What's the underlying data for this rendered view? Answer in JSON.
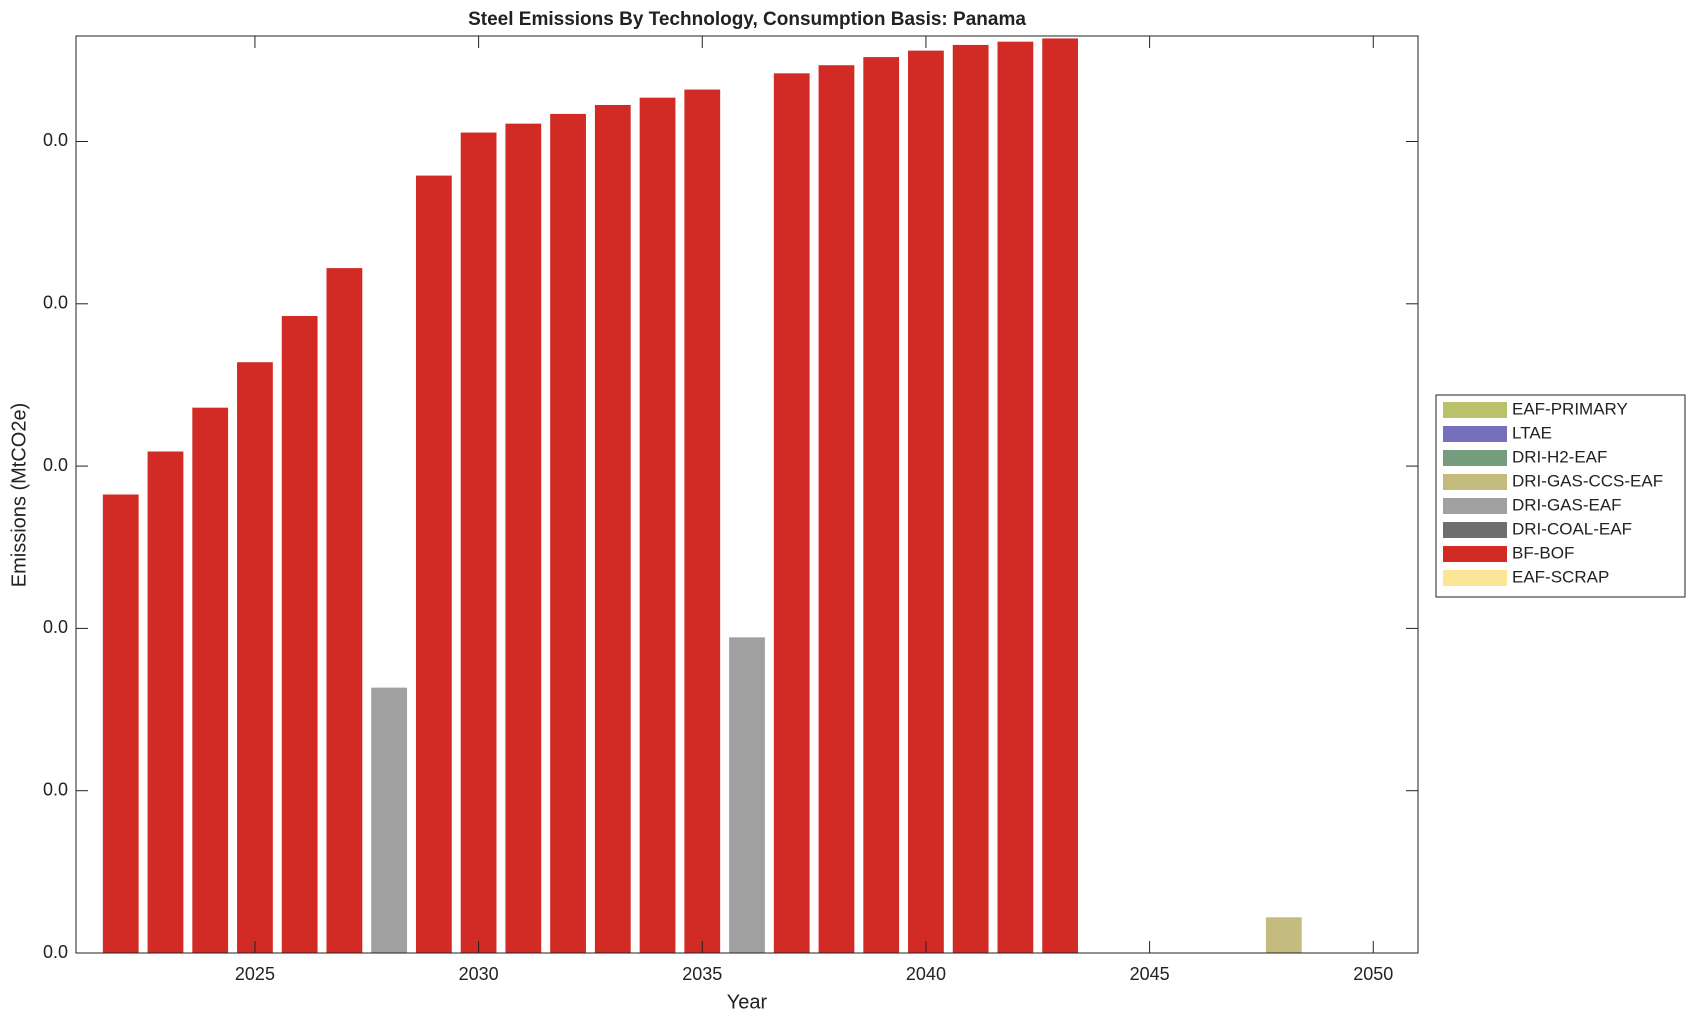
{
  "chart_data": {
    "type": "bar",
    "stacked": true,
    "title": "Steel Emissions By Technology, Consumption Basis: Panama",
    "xlabel": "Year",
    "ylabel": "Emissions (MtCO2e)",
    "x": [
      2022,
      2023,
      2024,
      2025,
      2026,
      2027,
      2028,
      2029,
      2030,
      2031,
      2032,
      2033,
      2034,
      2035,
      2036,
      2037,
      2038,
      2039,
      2040,
      2041,
      2042,
      2043,
      2048
    ],
    "series": [
      {
        "name": "EAF-PRIMARY",
        "color": "#b9c16a",
        "values": [
          null,
          null,
          null,
          null,
          null,
          null,
          null,
          null,
          null,
          null,
          null,
          null,
          null,
          null,
          null,
          null,
          null,
          null,
          null,
          null,
          null,
          null,
          null
        ]
      },
      {
        "name": "LTAE",
        "color": "#7570bb",
        "values": [
          null,
          null,
          null,
          null,
          null,
          null,
          null,
          null,
          null,
          null,
          null,
          null,
          null,
          null,
          null,
          null,
          null,
          null,
          null,
          null,
          null,
          null,
          null
        ]
      },
      {
        "name": "DRI-H2-EAF",
        "color": "#759c7c",
        "values": [
          null,
          null,
          null,
          null,
          null,
          null,
          null,
          null,
          null,
          null,
          null,
          null,
          null,
          null,
          null,
          null,
          null,
          null,
          null,
          null,
          null,
          null,
          null
        ]
      },
      {
        "name": "DRI-GAS-CCS-EAF",
        "color": "#c4bb7e",
        "values": [
          null,
          null,
          null,
          null,
          null,
          null,
          null,
          null,
          null,
          null,
          null,
          null,
          null,
          null,
          null,
          null,
          null,
          null,
          null,
          null,
          null,
          null,
          0.00044
        ]
      },
      {
        "name": "DRI-GAS-EAF",
        "color": "#a0a0a0",
        "values": [
          null,
          null,
          null,
          null,
          null,
          null,
          0.00327,
          null,
          null,
          null,
          null,
          null,
          null,
          null,
          0.00389,
          null,
          null,
          null,
          null,
          null,
          null,
          null,
          null
        ]
      },
      {
        "name": "DRI-COAL-EAF",
        "color": "#6e6e6e",
        "values": [
          null,
          null,
          null,
          null,
          null,
          null,
          null,
          null,
          null,
          null,
          null,
          null,
          null,
          null,
          null,
          null,
          null,
          null,
          null,
          null,
          null,
          null,
          null
        ]
      },
      {
        "name": "BF-BOF",
        "color": "#d22b26",
        "values": [
          0.00565,
          0.00618,
          0.00672,
          0.00728,
          0.00785,
          0.00844,
          null,
          0.00958,
          0.01011,
          0.01022,
          0.01034,
          0.01045,
          0.01054,
          0.01064,
          null,
          0.01084,
          0.01094,
          0.01104,
          0.01112,
          0.01119,
          0.01123,
          0.01127,
          null
        ]
      },
      {
        "name": "EAF-SCRAP",
        "color": "#fde597",
        "values": [
          null,
          null,
          null,
          null,
          null,
          null,
          null,
          null,
          null,
          null,
          null,
          null,
          null,
          null,
          null,
          null,
          null,
          null,
          null,
          null,
          null,
          null,
          null
        ]
      }
    ],
    "xlim": [
      2021,
      2051
    ],
    "xticks": [
      2025,
      2030,
      2035,
      2040,
      2045,
      2050
    ],
    "ylim": [
      0,
      0.0113
    ],
    "yticks": [
      {
        "value": 0,
        "label": "0.0"
      },
      {
        "value": 0.002,
        "label": "0.0"
      },
      {
        "value": 0.004,
        "label": "0.0"
      },
      {
        "value": 0.006,
        "label": "0.0"
      },
      {
        "value": 0.008,
        "label": "0.0"
      },
      {
        "value": 0.01,
        "label": "0.0"
      }
    ],
    "legend": "right"
  }
}
